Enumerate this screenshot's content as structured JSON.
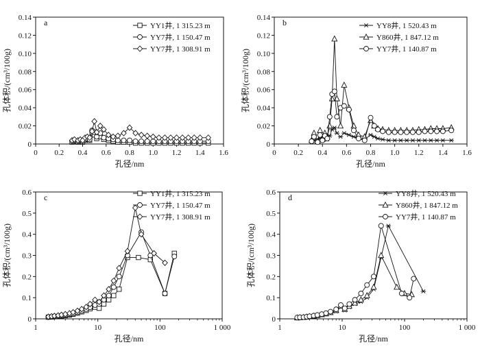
{
  "chart_data": [
    {
      "id": "a",
      "type": "line",
      "panel_label": "a",
      "xscale": "linear",
      "xlim": [
        0,
        1.6
      ],
      "ylim": [
        0,
        0.14
      ],
      "xticks": [
        0,
        0.2,
        0.4,
        0.6,
        0.8,
        1.0,
        1.2,
        1.4,
        1.6
      ],
      "xtick_labels": [
        "0",
        "0.2",
        "0.4",
        "0.6",
        "0.8",
        "1.0",
        "1.2",
        "1.4",
        "1.6"
      ],
      "yticks": [
        0,
        0.02,
        0.04,
        0.06,
        0.08,
        0.1,
        0.12,
        0.14
      ],
      "ytick_labels": [
        "0",
        "0.02",
        "0.04",
        "0.06",
        "0.08",
        "0.10",
        "0.12",
        "0.14"
      ],
      "xlabel": "孔径/nm",
      "ylabel": "孔体积/(cm³/100g)",
      "legend_position": "top-right",
      "series": [
        {
          "name": "YY1井, 1 315.23 m",
          "marker": "square",
          "x": [
            0.31,
            0.33,
            0.36,
            0.38,
            0.4,
            0.42,
            0.44,
            0.46,
            0.48,
            0.5,
            0.52,
            0.55,
            0.58,
            0.62,
            0.66,
            0.7,
            0.75,
            0.8,
            0.85,
            0.9,
            0.95,
            1.0,
            1.05,
            1.1,
            1.15,
            1.2,
            1.25,
            1.3,
            1.35,
            1.4,
            1.47
          ],
          "y": [
            0.002,
            0.003,
            0.002,
            0.003,
            0.002,
            0.004,
            0.005,
            0.004,
            0.012,
            0.01,
            0.006,
            0.008,
            0.005,
            0.004,
            0.003,
            0.002,
            0.002,
            0.002,
            0.001,
            0.001,
            0.001,
            0.001,
            0.001,
            0.001,
            0.001,
            0.001,
            0.001,
            0.001,
            0.001,
            0.001,
            0.001
          ]
        },
        {
          "name": "YY7井, 1 150.47 m",
          "marker": "circle",
          "x": [
            0.31,
            0.33,
            0.36,
            0.38,
            0.4,
            0.42,
            0.44,
            0.46,
            0.48,
            0.5,
            0.52,
            0.55,
            0.58,
            0.62,
            0.66,
            0.7,
            0.75,
            0.8,
            0.85,
            0.9,
            0.95,
            1.0,
            1.05,
            1.1,
            1.15,
            1.2,
            1.25,
            1.3,
            1.35,
            1.4,
            1.47
          ],
          "y": [
            0.003,
            0.004,
            0.003,
            0.004,
            0.003,
            0.005,
            0.006,
            0.005,
            0.015,
            0.013,
            0.008,
            0.012,
            0.007,
            0.006,
            0.005,
            0.004,
            0.004,
            0.004,
            0.003,
            0.003,
            0.003,
            0.003,
            0.003,
            0.003,
            0.003,
            0.003,
            0.003,
            0.003,
            0.003,
            0.003,
            0.003
          ]
        },
        {
          "name": "YY7井, 1 308.91 m",
          "marker": "diamond",
          "x": [
            0.31,
            0.33,
            0.36,
            0.38,
            0.4,
            0.42,
            0.44,
            0.46,
            0.48,
            0.5,
            0.52,
            0.55,
            0.58,
            0.62,
            0.66,
            0.7,
            0.75,
            0.8,
            0.85,
            0.9,
            0.95,
            1.0,
            1.05,
            1.1,
            1.15,
            1.2,
            1.25,
            1.3,
            1.35,
            1.4,
            1.47
          ],
          "y": [
            0.004,
            0.005,
            0.004,
            0.005,
            0.004,
            0.007,
            0.008,
            0.007,
            0.014,
            0.025,
            0.013,
            0.02,
            0.016,
            0.01,
            0.008,
            0.009,
            0.012,
            0.018,
            0.012,
            0.01,
            0.009,
            0.008,
            0.007,
            0.007,
            0.007,
            0.007,
            0.007,
            0.007,
            0.007,
            0.007,
            0.007
          ]
        }
      ]
    },
    {
      "id": "b",
      "type": "line",
      "panel_label": "b",
      "xscale": "linear",
      "xlim": [
        0,
        1.6
      ],
      "ylim": [
        0,
        0.14
      ],
      "xticks": [
        0,
        0.2,
        0.4,
        0.6,
        0.8,
        1.0,
        1.2,
        1.4,
        1.6
      ],
      "xtick_labels": [
        "0",
        "0.2",
        "0.4",
        "0.6",
        "0.8",
        "1.0",
        "1.2",
        "1.4",
        "1.6"
      ],
      "yticks": [
        0,
        0.02,
        0.04,
        0.06,
        0.08,
        0.1,
        0.12,
        0.14
      ],
      "ytick_labels": [
        "0",
        "0.02",
        "0.04",
        "0.06",
        "0.08",
        "0.10",
        "0.12",
        "0.14"
      ],
      "xlabel": "孔径/nm",
      "ylabel": "孔体积/(cm³/100g)",
      "legend_position": "top-right",
      "series": [
        {
          "name": "YY8井, 1 520.43 m",
          "marker": "star",
          "x": [
            0.31,
            0.33,
            0.36,
            0.38,
            0.4,
            0.42,
            0.44,
            0.46,
            0.48,
            0.5,
            0.52,
            0.55,
            0.58,
            0.62,
            0.66,
            0.7,
            0.75,
            0.8,
            0.83,
            0.86,
            0.9,
            0.95,
            1.0,
            1.05,
            1.1,
            1.15,
            1.2,
            1.25,
            1.3,
            1.35,
            1.4,
            1.47
          ],
          "y": [
            0.002,
            0.004,
            0.003,
            0.006,
            0.004,
            0.007,
            0.005,
            0.009,
            0.016,
            0.018,
            0.012,
            0.008,
            0.012,
            0.01,
            0.008,
            0.006,
            0.005,
            0.01,
            0.008,
            0.006,
            0.005,
            0.004,
            0.004,
            0.004,
            0.004,
            0.004,
            0.004,
            0.004,
            0.004,
            0.004,
            0.004,
            0.004
          ]
        },
        {
          "name": "Y860井, 1 847.12 m",
          "marker": "triangle",
          "x": [
            0.31,
            0.33,
            0.36,
            0.38,
            0.4,
            0.42,
            0.44,
            0.46,
            0.48,
            0.5,
            0.52,
            0.55,
            0.58,
            0.62,
            0.66,
            0.7,
            0.75,
            0.8,
            0.83,
            0.86,
            0.9,
            0.95,
            1.0,
            1.05,
            1.1,
            1.15,
            1.2,
            1.25,
            1.3,
            1.35,
            1.4,
            1.47
          ],
          "y": [
            0.004,
            0.012,
            0.003,
            0.015,
            0.005,
            0.012,
            0.008,
            0.02,
            0.05,
            0.116,
            0.05,
            0.02,
            0.065,
            0.04,
            0.02,
            0.01,
            0.008,
            0.026,
            0.02,
            0.017,
            0.016,
            0.015,
            0.015,
            0.015,
            0.015,
            0.015,
            0.016,
            0.016,
            0.017,
            0.017,
            0.017,
            0.018
          ]
        },
        {
          "name": "YY7井, 1 140.87 m",
          "marker": "circle",
          "x": [
            0.31,
            0.33,
            0.36,
            0.38,
            0.4,
            0.42,
            0.44,
            0.46,
            0.48,
            0.5,
            0.52,
            0.55,
            0.58,
            0.62,
            0.66,
            0.7,
            0.75,
            0.8,
            0.83,
            0.86,
            0.9,
            0.95,
            1.0,
            1.05,
            1.1,
            1.15,
            1.2,
            1.25,
            1.3,
            1.35,
            1.4,
            1.47
          ],
          "y": [
            0.003,
            0.008,
            0.002,
            0.01,
            0.004,
            0.009,
            0.006,
            0.03,
            0.055,
            0.058,
            0.03,
            0.04,
            0.042,
            0.038,
            0.015,
            0.006,
            0.004,
            0.029,
            0.02,
            0.016,
            0.014,
            0.013,
            0.013,
            0.013,
            0.013,
            0.013,
            0.013,
            0.014,
            0.014,
            0.014,
            0.014,
            0.015
          ]
        }
      ]
    },
    {
      "id": "c",
      "type": "line",
      "panel_label": "c",
      "xscale": "log",
      "xlim": [
        1,
        1000
      ],
      "ylim": [
        0,
        0.6
      ],
      "xticks": [
        1,
        10,
        100,
        1000
      ],
      "xtick_labels": [
        "1",
        "10",
        "100",
        "1 000"
      ],
      "yticks": [
        0,
        0.1,
        0.2,
        0.3,
        0.4,
        0.5,
        0.6
      ],
      "ytick_labels": [
        "0",
        "0.1",
        "0.2",
        "0.3",
        "0.4",
        "0.5",
        "0.6"
      ],
      "xlabel": "孔径/nm",
      "ylabel": "孔体积/(cm³/100g)",
      "legend_position": "top-right",
      "series": [
        {
          "name": "YY1井, 1 315.23 m",
          "marker": "square",
          "x": [
            1.6,
            1.8,
            2.0,
            2.3,
            2.6,
            3.0,
            3.5,
            4.0,
            4.7,
            5.5,
            6.5,
            7.5,
            9.0,
            10.5,
            12.5,
            15,
            18,
            22,
            30,
            45,
            70,
            120,
            170
          ],
          "y": [
            0.008,
            0.009,
            0.01,
            0.011,
            0.013,
            0.015,
            0.018,
            0.022,
            0.027,
            0.033,
            0.04,
            0.048,
            0.055,
            0.05,
            0.07,
            0.09,
            0.11,
            0.14,
            0.29,
            0.29,
            0.28,
            0.12,
            0.31
          ]
        },
        {
          "name": "YY7井, 1 150.47 m",
          "marker": "circle",
          "x": [
            1.6,
            1.8,
            2.0,
            2.3,
            2.6,
            3.0,
            3.5,
            4.0,
            4.7,
            5.5,
            6.5,
            7.5,
            9.0,
            10.5,
            12.5,
            15,
            18,
            22,
            30,
            50,
            70,
            120,
            170
          ],
          "y": [
            0.008,
            0.01,
            0.012,
            0.014,
            0.016,
            0.018,
            0.021,
            0.025,
            0.031,
            0.038,
            0.046,
            0.055,
            0.065,
            0.07,
            0.09,
            0.11,
            0.15,
            0.2,
            0.3,
            0.41,
            0.3,
            0.12,
            0.295
          ]
        },
        {
          "name": "YY7井, 1 308.91 m",
          "marker": "diamond",
          "x": [
            1.6,
            1.8,
            2.0,
            2.3,
            2.6,
            3.0,
            3.5,
            4.0,
            4.7,
            5.5,
            6.5,
            7.5,
            9.0,
            10.5,
            12.5,
            15,
            18,
            22,
            30,
            40,
            50,
            80,
            120
          ],
          "y": [
            0.01,
            0.012,
            0.014,
            0.016,
            0.019,
            0.022,
            0.026,
            0.031,
            0.038,
            0.046,
            0.056,
            0.07,
            0.09,
            0.08,
            0.11,
            0.14,
            0.18,
            0.24,
            0.32,
            0.525,
            0.4,
            0.31,
            0.265
          ]
        }
      ]
    },
    {
      "id": "d",
      "type": "line",
      "panel_label": "d",
      "xscale": "log",
      "xlim": [
        1,
        1000
      ],
      "ylim": [
        0,
        0.6
      ],
      "xticks": [
        1,
        10,
        100,
        1000
      ],
      "xtick_labels": [
        "1",
        "10",
        "100",
        "1 000"
      ],
      "yticks": [
        0,
        0.1,
        0.2,
        0.3,
        0.4,
        0.5,
        0.6
      ],
      "ytick_labels": [
        "0",
        "0.1",
        "0.2",
        "0.3",
        "0.4",
        "0.5",
        "0.6"
      ],
      "xlabel": "孔径/nm",
      "ylabel": "孔体积/(cm³/100g)",
      "legend_position": "top-right",
      "series": [
        {
          "name": "YY8井, 1 520.43 m",
          "marker": "star",
          "x": [
            1.9,
            2.1,
            2.4,
            2.7,
            3.0,
            3.5,
            4.0,
            4.7,
            5.5,
            6.5,
            8.0,
            9.5,
            11,
            13,
            16,
            20,
            25,
            32,
            42,
            55,
            200
          ],
          "y": [
            0.004,
            0.005,
            0.006,
            0.008,
            0.01,
            0.012,
            0.015,
            0.018,
            0.022,
            0.027,
            0.035,
            0.055,
            0.04,
            0.055,
            0.07,
            0.08,
            0.1,
            0.14,
            0.29,
            0.44,
            0.13
          ]
        },
        {
          "name": "Y860井, 1 847.12 m",
          "marker": "triangle",
          "x": [
            1.9,
            2.1,
            2.4,
            2.7,
            3.0,
            3.5,
            4.0,
            4.7,
            5.5,
            6.5,
            8.0,
            9.5,
            11,
            13,
            16,
            20,
            25,
            32,
            42,
            75,
            100,
            130
          ],
          "y": [
            0.005,
            0.006,
            0.007,
            0.009,
            0.011,
            0.013,
            0.016,
            0.02,
            0.024,
            0.03,
            0.04,
            0.06,
            0.045,
            0.06,
            0.075,
            0.09,
            0.11,
            0.15,
            0.3,
            0.15,
            0.12,
            0.115
          ]
        },
        {
          "name": "YY7井, 1 140.87 m",
          "marker": "circle",
          "x": [
            1.9,
            2.1,
            2.4,
            2.7,
            3.0,
            3.5,
            4.0,
            4.7,
            5.5,
            6.5,
            8.0,
            9.5,
            11,
            13,
            16,
            20,
            25,
            32,
            42,
            90,
            120,
            140
          ],
          "y": [
            0.006,
            0.007,
            0.008,
            0.01,
            0.012,
            0.015,
            0.018,
            0.022,
            0.027,
            0.034,
            0.045,
            0.065,
            0.05,
            0.07,
            0.09,
            0.12,
            0.16,
            0.2,
            0.44,
            0.12,
            0.1,
            0.19
          ]
        }
      ]
    }
  ]
}
